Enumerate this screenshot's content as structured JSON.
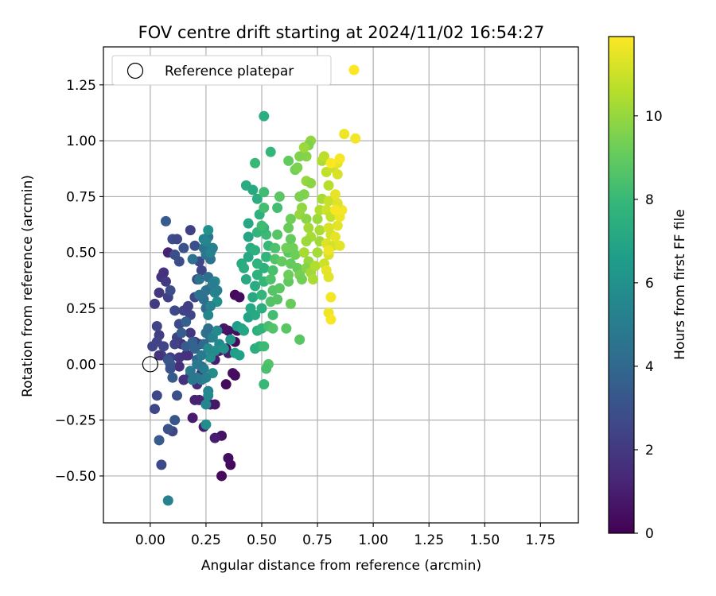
{
  "chart_data": {
    "type": "scatter",
    "title": "FOV centre drift starting at 2024/11/02 16:54:27",
    "xlabel": "Angular distance from reference (arcmin)",
    "ylabel": "Rotation from reference (arcmin)",
    "xlim": [
      -0.21,
      1.92
    ],
    "ylim": [
      -0.71,
      1.42
    ],
    "xticks": [
      0.0,
      0.25,
      0.5,
      0.75,
      1.0,
      1.25,
      1.5,
      1.75
    ],
    "xtick_labels": [
      "0.00",
      "0.25",
      "0.50",
      "0.75",
      "1.00",
      "1.25",
      "1.50",
      "1.75"
    ],
    "yticks": [
      -0.5,
      -0.25,
      0.0,
      0.25,
      0.5,
      0.75,
      1.0,
      1.25
    ],
    "ytick_labels": [
      "−0.50",
      "−0.25",
      "0.00",
      "0.25",
      "0.50",
      "0.75",
      "1.00",
      "1.25"
    ],
    "grid": true,
    "legend": {
      "position": "top-left",
      "entries": [
        "Reference platepar",
        ""
      ]
    },
    "reference_point": {
      "x": 0.0,
      "y": 0.0,
      "label": "Reference platepar"
    },
    "colorbar": {
      "label": "Hours from first FF file",
      "range": [
        0,
        11.9
      ],
      "ticks": [
        0,
        2,
        4,
        6,
        8,
        10
      ],
      "tick_labels": [
        "0",
        "2",
        "4",
        "6",
        "8",
        "10"
      ],
      "colormap": "viridis"
    },
    "colormap_stops": [
      "#440154",
      "#482878",
      "#3e4989",
      "#31688e",
      "#26828e",
      "#1f9e89",
      "#35b779",
      "#6ece58",
      "#b5de2b",
      "#fde725"
    ],
    "points_format": [
      "x",
      "y",
      "hours"
    ],
    "points": [
      [
        0.36,
        -0.45,
        0.3
      ],
      [
        0.35,
        -0.42,
        0.4
      ],
      [
        0.32,
        -0.5,
        0.3
      ],
      [
        0.32,
        -0.32,
        0.6
      ],
      [
        0.37,
        -0.04,
        0.5
      ],
      [
        0.38,
        -0.05,
        0.4
      ],
      [
        0.34,
        -0.09,
        0.3
      ],
      [
        0.38,
        0.1,
        0.3
      ],
      [
        0.39,
        0.15,
        0.4
      ],
      [
        0.35,
        0.15,
        0.6
      ],
      [
        0.34,
        0.07,
        0.4
      ],
      [
        0.38,
        0.31,
        0.3
      ],
      [
        0.4,
        0.3,
        0.4
      ],
      [
        0.33,
        0.16,
        0.7
      ],
      [
        0.35,
        0.05,
        1.0
      ],
      [
        0.31,
        0.06,
        0.9
      ],
      [
        0.29,
        0.02,
        1.0
      ],
      [
        0.24,
        -0.28,
        1.0
      ],
      [
        0.27,
        -0.18,
        0.9
      ],
      [
        0.29,
        -0.18,
        0.7
      ],
      [
        0.29,
        -0.33,
        1.0
      ],
      [
        0.22,
        -0.16,
        1.2
      ],
      [
        0.2,
        -0.16,
        1.1
      ],
      [
        0.19,
        -0.24,
        0.9
      ],
      [
        0.23,
        -0.04,
        1.3
      ],
      [
        0.21,
        -0.09,
        1.4
      ],
      [
        0.18,
        -0.05,
        1.8
      ],
      [
        0.15,
        -0.07,
        1.7
      ],
      [
        0.13,
        -0.01,
        1.6
      ],
      [
        0.13,
        0.03,
        1.9
      ],
      [
        0.14,
        0.09,
        1.7
      ],
      [
        0.18,
        0.14,
        1.9
      ],
      [
        0.2,
        0.1,
        1.7
      ],
      [
        0.22,
        0.09,
        1.8
      ],
      [
        0.17,
        0.04,
        2.0
      ],
      [
        0.16,
        0.04,
        1.7
      ],
      [
        0.12,
        0.12,
        2.3
      ],
      [
        0.11,
        0.09,
        2.4
      ],
      [
        0.09,
        0.03,
        2.2
      ],
      [
        0.05,
        0.04,
        2.4
      ],
      [
        0.04,
        0.04,
        1.8
      ],
      [
        0.06,
        0.08,
        2.5
      ],
      [
        0.04,
        0.13,
        2.2
      ],
      [
        0.03,
        0.17,
        2.4
      ],
      [
        0.02,
        0.27,
        2.1
      ],
      [
        0.04,
        0.32,
        1.9
      ],
      [
        0.05,
        0.39,
        1.8
      ],
      [
        0.06,
        0.41,
        1.7
      ],
      [
        0.07,
        0.37,
        2.1
      ],
      [
        0.08,
        0.3,
        2.3
      ],
      [
        0.08,
        0.5,
        1.1
      ],
      [
        0.09,
        0.33,
        2.8
      ],
      [
        0.11,
        0.24,
        2.6
      ],
      [
        0.13,
        0.18,
        2.7
      ],
      [
        0.15,
        0.24,
        2.4
      ],
      [
        0.17,
        0.26,
        2.3
      ],
      [
        0.18,
        0.22,
        2.5
      ],
      [
        0.2,
        0.3,
        2.6
      ],
      [
        0.21,
        0.38,
        2.7
      ],
      [
        0.23,
        0.42,
        2.5
      ],
      [
        0.22,
        0.46,
        2.6
      ],
      [
        0.2,
        0.53,
        2.9
      ],
      [
        0.18,
        0.6,
        2.3
      ],
      [
        0.15,
        0.52,
        3.1
      ],
      [
        0.13,
        0.46,
        2.8
      ],
      [
        0.11,
        0.49,
        2.9
      ],
      [
        0.1,
        0.56,
        2.8
      ],
      [
        0.12,
        0.56,
        2.6
      ],
      [
        0.07,
        0.64,
        3.4
      ],
      [
        0.08,
        0.02,
        3.1
      ],
      [
        0.09,
        0.0,
        3.3
      ],
      [
        0.09,
        -0.02,
        3.0
      ],
      [
        0.1,
        -0.06,
        3.4
      ],
      [
        0.12,
        -0.14,
        2.9
      ],
      [
        0.11,
        -0.25,
        3.2
      ],
      [
        0.1,
        -0.3,
        2.4
      ],
      [
        0.08,
        -0.29,
        3.0
      ],
      [
        0.04,
        -0.34,
        3.4
      ],
      [
        0.05,
        -0.45,
        2.7
      ],
      [
        0.03,
        -0.14,
        2.6
      ],
      [
        0.02,
        -0.2,
        2.6
      ],
      [
        0.01,
        0.08,
        2.5
      ],
      [
        0.03,
        0.1,
        2.4
      ],
      [
        0.16,
        0.08,
        3.4
      ],
      [
        0.14,
        0.14,
        3.5
      ],
      [
        0.16,
        0.19,
        3.6
      ],
      [
        0.19,
        0.1,
        3.7
      ],
      [
        0.2,
        0.07,
        3.8
      ],
      [
        0.21,
        0.02,
        3.9
      ],
      [
        0.23,
        -0.01,
        4.1
      ],
      [
        0.24,
        0.09,
        4.1
      ],
      [
        0.25,
        0.14,
        4.4
      ],
      [
        0.26,
        0.16,
        4.3
      ],
      [
        0.27,
        0.12,
        4.2
      ],
      [
        0.25,
        0.25,
        4.1
      ],
      [
        0.24,
        0.29,
        4.3
      ],
      [
        0.22,
        0.31,
        4.5
      ],
      [
        0.25,
        0.33,
        4.6
      ],
      [
        0.27,
        0.34,
        4.3
      ],
      [
        0.26,
        0.39,
        4.4
      ],
      [
        0.22,
        0.38,
        4.6
      ],
      [
        0.19,
        0.47,
        4.5
      ],
      [
        0.24,
        0.52,
        4.6
      ],
      [
        0.25,
        0.49,
        4.7
      ],
      [
        0.27,
        0.47,
        4.5
      ],
      [
        0.26,
        0.57,
        4.5
      ],
      [
        0.24,
        0.56,
        5.3
      ],
      [
        0.25,
        0.55,
        5.4
      ],
      [
        0.28,
        0.52,
        5.2
      ],
      [
        0.27,
        0.5,
        5.3
      ],
      [
        0.29,
        0.37,
        5.5
      ],
      [
        0.29,
        0.32,
        5.4
      ],
      [
        0.3,
        0.28,
        5.8
      ],
      [
        0.3,
        0.33,
        5.2
      ],
      [
        0.28,
        0.36,
        5.1
      ],
      [
        0.27,
        0.26,
        5.3
      ],
      [
        0.26,
        0.22,
        5.5
      ],
      [
        0.28,
        0.12,
        5.3
      ],
      [
        0.3,
        0.15,
        5.7
      ],
      [
        0.31,
        0.09,
        5.6
      ],
      [
        0.29,
        0.06,
        5.8
      ],
      [
        0.27,
        0.03,
        5.9
      ],
      [
        0.26,
        0.07,
        5.7
      ],
      [
        0.28,
        -0.04,
        5.8
      ],
      [
        0.25,
        -0.06,
        5.2
      ],
      [
        0.24,
        -0.02,
        5.0
      ],
      [
        0.23,
        -0.07,
        5.1
      ],
      [
        0.21,
        -0.06,
        4.9
      ],
      [
        0.19,
        -0.07,
        4.8
      ],
      [
        0.18,
        -0.03,
        4.8
      ],
      [
        0.21,
        0.0,
        4.8
      ],
      [
        0.23,
        0.04,
        4.9
      ],
      [
        0.26,
        -0.12,
        5.4
      ],
      [
        0.26,
        -0.14,
        5.6
      ],
      [
        0.25,
        -0.18,
        5.5
      ],
      [
        0.25,
        -0.27,
        5.8
      ],
      [
        0.08,
        -0.61,
        5.3
      ],
      [
        0.26,
        0.6,
        6.0
      ],
      [
        0.33,
        0.07,
        6.1
      ],
      [
        0.38,
        0.05,
        6.6
      ],
      [
        0.4,
        0.04,
        6.7
      ],
      [
        0.36,
        0.11,
        6.3
      ],
      [
        0.39,
        0.17,
        6.5
      ],
      [
        0.41,
        0.16,
        6.8
      ],
      [
        0.42,
        0.15,
        7.0
      ],
      [
        0.44,
        0.21,
        6.8
      ],
      [
        0.43,
        0.38,
        7.2
      ],
      [
        0.42,
        0.43,
        7.4
      ],
      [
        0.41,
        0.45,
        7.3
      ],
      [
        0.44,
        0.48,
        7.1
      ],
      [
        0.45,
        0.52,
        7.3
      ],
      [
        0.44,
        0.57,
        7.0
      ],
      [
        0.44,
        0.63,
        7.1
      ],
      [
        0.43,
        0.8,
        7.3
      ],
      [
        0.46,
        0.78,
        7.2
      ],
      [
        0.48,
        0.74,
        7.4
      ],
      [
        0.49,
        0.67,
        7.6
      ],
      [
        0.48,
        0.59,
        7.8
      ],
      [
        0.47,
        0.51,
        7.5
      ],
      [
        0.48,
        0.45,
        7.7
      ],
      [
        0.48,
        0.4,
        7.6
      ],
      [
        0.47,
        0.35,
        7.3
      ],
      [
        0.46,
        0.3,
        7.2
      ],
      [
        0.45,
        0.25,
        7.1
      ],
      [
        0.47,
        0.22,
        7.2
      ],
      [
        0.47,
        0.07,
        7.4
      ],
      [
        0.49,
        0.08,
        7.5
      ],
      [
        0.48,
        0.15,
        7.5
      ],
      [
        0.5,
        0.16,
        7.7
      ],
      [
        0.5,
        0.25,
        7.4
      ],
      [
        0.5,
        0.31,
        7.8
      ],
      [
        0.51,
        0.37,
        7.9
      ],
      [
        0.51,
        0.43,
        7.6
      ],
      [
        0.52,
        0.48,
        7.8
      ],
      [
        0.53,
        0.53,
        8.0
      ],
      [
        0.52,
        0.58,
        8.1
      ],
      [
        0.51,
        0.61,
        7.9
      ],
      [
        0.5,
        0.62,
        8.2
      ],
      [
        0.51,
        0.7,
        8.3
      ],
      [
        0.51,
        0.77,
        8.2
      ],
      [
        0.47,
        0.9,
        8.0
      ],
      [
        0.54,
        0.95,
        7.9
      ],
      [
        0.51,
        1.11,
        7.4
      ],
      [
        0.51,
        0.08,
        8.1
      ],
      [
        0.51,
        -0.09,
        8.0
      ],
      [
        0.53,
        0.0,
        8.6
      ],
      [
        0.52,
        -0.02,
        8.4
      ],
      [
        0.53,
        0.17,
        8.4
      ],
      [
        0.55,
        0.16,
        8.6
      ],
      [
        0.55,
        0.22,
        8.3
      ],
      [
        0.54,
        0.28,
        8.6
      ],
      [
        0.55,
        0.33,
        8.7
      ],
      [
        0.54,
        0.38,
        8.5
      ],
      [
        0.55,
        0.42,
        8.4
      ],
      [
        0.56,
        0.47,
        8.6
      ],
      [
        0.56,
        0.52,
        8.5
      ],
      [
        0.57,
        0.58,
        8.7
      ],
      [
        0.57,
        0.7,
        8.3
      ],
      [
        0.58,
        0.75,
        8.8
      ],
      [
        0.59,
        0.46,
        9.0
      ],
      [
        0.58,
        0.34,
        8.8
      ],
      [
        0.57,
        0.29,
        8.7
      ],
      [
        0.61,
        0.16,
        8.8
      ],
      [
        0.63,
        0.27,
        9.1
      ],
      [
        0.62,
        0.37,
        8.9
      ],
      [
        0.62,
        0.4,
        9.2
      ],
      [
        0.63,
        0.45,
        9.0
      ],
      [
        0.62,
        0.5,
        8.8
      ],
      [
        0.61,
        0.52,
        9.3
      ],
      [
        0.63,
        0.56,
        9.0
      ],
      [
        0.62,
        0.61,
        9.1
      ],
      [
        0.63,
        0.65,
        9.2
      ],
      [
        0.64,
        0.52,
        9.3
      ],
      [
        0.65,
        0.49,
        9.2
      ],
      [
        0.66,
        0.43,
        9.1
      ],
      [
        0.67,
        0.4,
        9.4
      ],
      [
        0.68,
        0.38,
        9.3
      ],
      [
        0.67,
        0.11,
        8.8
      ],
      [
        0.62,
        0.91,
        9.0
      ],
      [
        0.65,
        0.87,
        9.3
      ],
      [
        0.66,
        0.88,
        9.5
      ],
      [
        0.67,
        0.93,
        9.6
      ],
      [
        0.7,
        0.93,
        9.7
      ],
      [
        0.72,
        1.0,
        9.9
      ],
      [
        0.71,
        0.98,
        9.6
      ],
      [
        0.69,
        0.97,
        10.1
      ],
      [
        0.7,
        0.82,
        10.0
      ],
      [
        0.72,
        0.81,
        9.8
      ],
      [
        0.69,
        0.76,
        9.6
      ],
      [
        0.67,
        0.75,
        9.5
      ],
      [
        0.68,
        0.7,
        9.9
      ],
      [
        0.67,
        0.67,
        10.0
      ],
      [
        0.7,
        0.65,
        9.8
      ],
      [
        0.71,
        0.61,
        10.2
      ],
      [
        0.72,
        0.57,
        10.3
      ],
      [
        0.7,
        0.55,
        10.1
      ],
      [
        0.69,
        0.5,
        10.3
      ],
      [
        0.71,
        0.46,
        10.0
      ],
      [
        0.7,
        0.43,
        9.7
      ],
      [
        0.72,
        0.41,
        10.2
      ],
      [
        0.73,
        0.38,
        10.4
      ],
      [
        0.74,
        0.44,
        10.5
      ],
      [
        0.75,
        0.5,
        10.3
      ],
      [
        0.76,
        0.55,
        10.2
      ],
      [
        0.76,
        0.6,
        10.4
      ],
      [
        0.75,
        0.65,
        10.1
      ],
      [
        0.76,
        0.69,
        10.5
      ],
      [
        0.77,
        0.74,
        10.3
      ],
      [
        0.77,
        0.91,
        10.4
      ],
      [
        0.78,
        0.93,
        10.7
      ],
      [
        0.79,
        0.86,
        10.8
      ],
      [
        0.8,
        0.8,
        10.6
      ],
      [
        0.8,
        0.73,
        10.9
      ],
      [
        0.79,
        0.69,
        11.0
      ],
      [
        0.81,
        0.66,
        10.8
      ],
      [
        0.8,
        0.61,
        11.2
      ],
      [
        0.81,
        0.58,
        11.1
      ],
      [
        0.79,
        0.54,
        11.3
      ],
      [
        0.8,
        0.49,
        11.2
      ],
      [
        0.78,
        0.45,
        11.0
      ],
      [
        0.79,
        0.42,
        11.5
      ],
      [
        0.8,
        0.39,
        11.4
      ],
      [
        0.81,
        0.3,
        11.7
      ],
      [
        0.8,
        0.23,
        11.6
      ],
      [
        0.81,
        0.2,
        11.8
      ],
      [
        0.82,
        0.53,
        11.1
      ],
      [
        0.83,
        0.57,
        11.5
      ],
      [
        0.84,
        0.62,
        11.4
      ],
      [
        0.85,
        0.66,
        11.6
      ],
      [
        0.86,
        0.69,
        11.7
      ],
      [
        0.84,
        0.72,
        11.3
      ],
      [
        0.83,
        0.76,
        11.5
      ],
      [
        0.82,
        0.88,
        11.0
      ],
      [
        0.84,
        0.9,
        11.5
      ],
      [
        0.85,
        0.92,
        11.8
      ],
      [
        0.87,
        1.03,
        11.6
      ],
      [
        0.92,
        1.01,
        11.7
      ],
      [
        0.85,
        0.53,
        11.4
      ],
      [
        0.83,
        0.69,
        11.8
      ],
      [
        0.81,
        0.9,
        11.9
      ],
      [
        0.84,
        0.85,
        11.2
      ],
      [
        0.8,
        0.51,
        11.6
      ]
    ]
  }
}
